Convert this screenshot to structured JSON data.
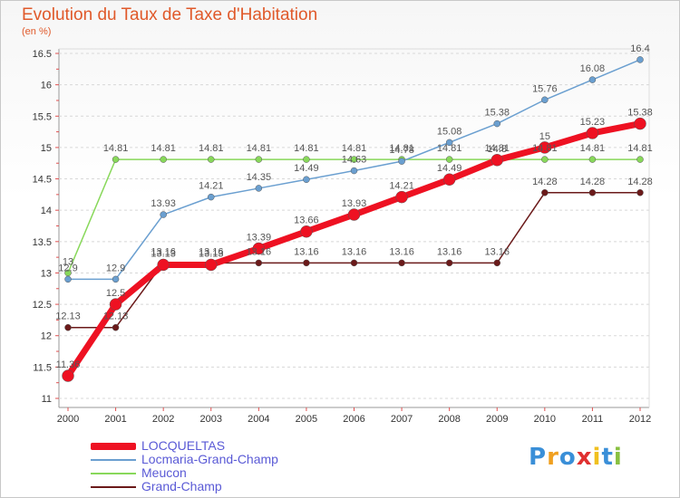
{
  "chart_data": {
    "type": "line",
    "title": "Evolution du Taux de Taxe d'Habitation",
    "subtitle": "(en %)",
    "x": [
      "2000",
      "2001",
      "2002",
      "2003",
      "2004",
      "2005",
      "2006",
      "2007",
      "2008",
      "2009",
      "2010",
      "2011",
      "2012"
    ],
    "yticks": [
      "11",
      "11.5",
      "12",
      "12.5",
      "13",
      "13.5",
      "14",
      "14.5",
      "15",
      "15.5",
      "16",
      "16.5"
    ],
    "ylim": [
      11,
      16.5
    ],
    "grid": "horizontal dashed",
    "legend_position": "bottom-left",
    "series": [
      {
        "name": "Grand-Champ",
        "color": "#6b1a1a",
        "width": 1.5,
        "marker": 3.5,
        "values": [
          12.13,
          12.13,
          13.16,
          13.16,
          13.16,
          13.16,
          13.16,
          13.16,
          13.16,
          13.16,
          14.28,
          14.28,
          14.28
        ],
        "labels": [
          "12.13",
          "12.13",
          "13.16",
          "13.16",
          "13.16",
          "13.16",
          "13.16",
          "13.16",
          "13.16",
          "13.16",
          "14.28",
          "14.28",
          "14.28"
        ]
      },
      {
        "name": "Meucon",
        "color": "#88d85a",
        "width": 1.5,
        "marker": 3.5,
        "values": [
          13.0,
          14.81,
          14.81,
          14.81,
          14.81,
          14.81,
          14.81,
          14.81,
          14.81,
          14.81,
          14.81,
          14.81,
          14.81
        ],
        "labels": [
          "13",
          "14.81",
          "14.81",
          "14.81",
          "14.81",
          "14.81",
          "14.81",
          "14.81",
          "14.81",
          "14.81",
          "14.81",
          "14.81",
          "14.81"
        ]
      },
      {
        "name": "Locmaria-Grand-Champ",
        "color": "#6a9fd0",
        "width": 1.5,
        "marker": 3.5,
        "values": [
          12.9,
          12.9,
          13.93,
          14.21,
          14.35,
          14.49,
          14.63,
          14.78,
          15.08,
          15.38,
          15.76,
          16.08,
          16.4
        ],
        "labels": [
          "12.9",
          "12.9",
          "13.93",
          "14.21",
          "14.35",
          "14.49",
          "14.63",
          "14.78",
          "15.08",
          "15.38",
          "15.76",
          "16.08",
          "16.4"
        ]
      },
      {
        "name": "LOCQUELTAS",
        "color": "#ee1122",
        "width": 7,
        "marker": 6.5,
        "values": [
          11.36,
          12.5,
          13.13,
          13.13,
          13.39,
          13.66,
          13.93,
          14.21,
          14.49,
          14.8,
          15.0,
          15.23,
          15.38
        ],
        "labels": [
          "11.36",
          "12.5",
          "13.13",
          "13.13",
          "13.39",
          "13.66",
          "13.93",
          "14.21",
          "14.49",
          "14.8",
          "15",
          "15.23",
          "15.38"
        ]
      }
    ]
  },
  "legend": {
    "items": [
      {
        "label": "LOCQUELTAS",
        "color": "#ee1122"
      },
      {
        "label": "Locmaria-Grand-Champ",
        "color": "#6a9fd0"
      },
      {
        "label": "Meucon",
        "color": "#88d85a"
      },
      {
        "label": "Grand-Champ",
        "color": "#6b1a1a"
      }
    ]
  },
  "logo": {
    "letters": [
      "P",
      "r",
      "o",
      "x",
      "i",
      "t",
      "i"
    ],
    "colors": [
      "#3a8fd8",
      "#f0a020",
      "#3a8fd8",
      "#e03030",
      "#f0c020",
      "#3a8fd8",
      "#88c040"
    ]
  }
}
